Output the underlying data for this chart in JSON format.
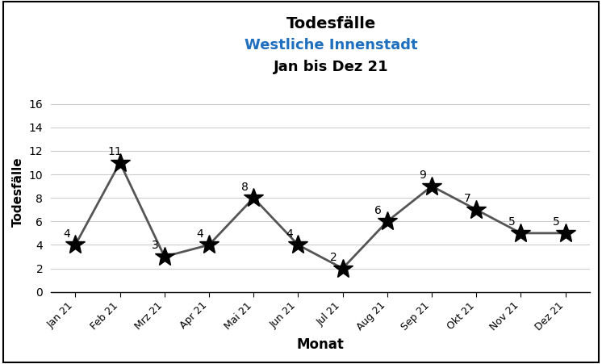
{
  "title_line1": "Todesfälle",
  "title_line2": "Westliche Innenstadt",
  "title_line3": "Jan bis Dez 21",
  "title_line2_color": "#1F6FBF",
  "xlabel": "Monat",
  "ylabel": "Todesfälle",
  "months": [
    "Jan 21",
    "Feb 21",
    "Mrz 21",
    "Apr 21",
    "Mai 21",
    "Jun 21",
    "Jul 21",
    "Aug 21",
    "Sep 21",
    "Okt 21",
    "Nov 21",
    "Dez 21"
  ],
  "values": [
    4,
    11,
    3,
    4,
    8,
    4,
    2,
    6,
    9,
    7,
    5,
    5
  ],
  "ylim": [
    0,
    17
  ],
  "yticks": [
    0,
    2,
    4,
    6,
    8,
    10,
    12,
    14,
    16
  ],
  "line_color": "#555555",
  "marker": "*",
  "marker_size": 18,
  "marker_color": "black",
  "line_width": 2.0,
  "annotation_fontsize": 10,
  "background_color": "#ffffff",
  "grid_color": "#cccccc"
}
